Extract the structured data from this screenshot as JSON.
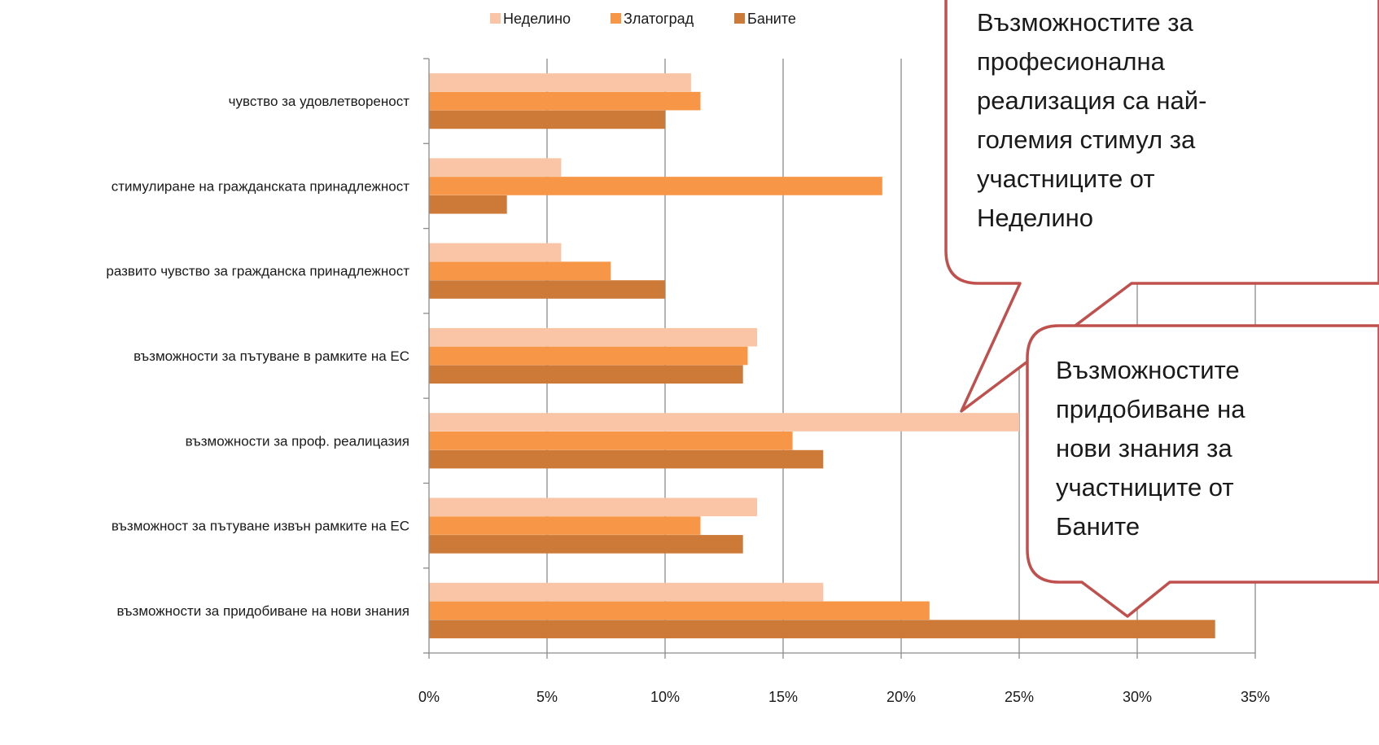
{
  "chart_data": {
    "type": "bar",
    "orientation": "horizontal",
    "categories": [
      "чувство за удовлетвореност",
      "стимулиране на гражданската принадлежност",
      "развито чувство за гражданска принадлежност",
      "възможности за пътуване в рамките на ЕС",
      "възможности за проф. реалицазия",
      "възможност за пътуване извън рамките на ЕС",
      "възможности за придобиване на нови знания"
    ],
    "series": [
      {
        "name": "Неделино",
        "color": "#f9c5a6",
        "values": [
          11.1,
          5.6,
          5.6,
          13.9,
          25.0,
          13.9,
          16.7
        ]
      },
      {
        "name": "Златоград",
        "color": "#f79646",
        "values": [
          11.5,
          19.2,
          7.7,
          13.5,
          15.4,
          11.5,
          21.2
        ]
      },
      {
        "name": "Баните",
        "color": "#cd7a38",
        "values": [
          10.0,
          3.3,
          10.0,
          13.3,
          16.7,
          13.3,
          33.3
        ]
      }
    ],
    "x_ticks": [
      "0%",
      "5%",
      "10%",
      "15%",
      "20%",
      "25%",
      "30%",
      "35%"
    ],
    "xlim": [
      0,
      35
    ],
    "x_unit": "%",
    "grid": true,
    "legend_position": "top"
  },
  "annotations": [
    {
      "lines": [
        "Възможностите за",
        "професионална",
        "реализация са най-",
        "големия стимул за",
        "участниците от",
        "Неделино"
      ]
    },
    {
      "lines": [
        "Възможностите",
        "придобиване на",
        "нови знания за",
        "участниците от",
        "Баните"
      ]
    }
  ]
}
